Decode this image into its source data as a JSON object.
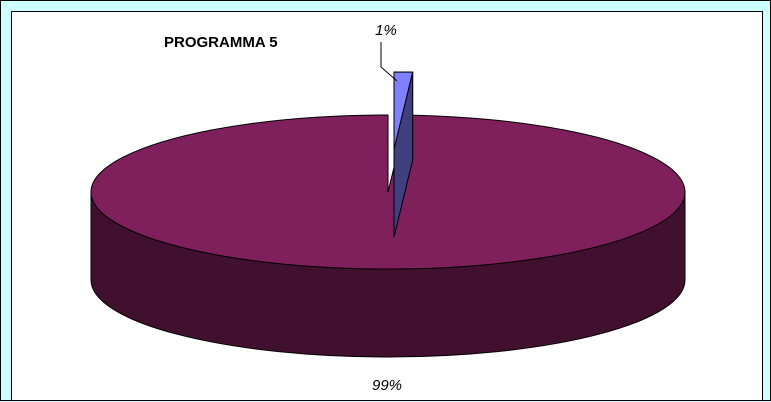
{
  "chart_data": {
    "type": "pie",
    "title": "PROGRAMMA 5",
    "slices": [
      {
        "value": 1,
        "label": "1%",
        "color": "#8080ff",
        "side_color": "#404080",
        "exploded": true
      },
      {
        "value": 99,
        "label": "99%",
        "color": "#7f1f5c",
        "side_color": "#41102e",
        "exploded": false
      }
    ],
    "three_d": true,
    "legend": "none"
  },
  "colors": {
    "background": "#ccffff",
    "plot_background": "#ffffff"
  }
}
